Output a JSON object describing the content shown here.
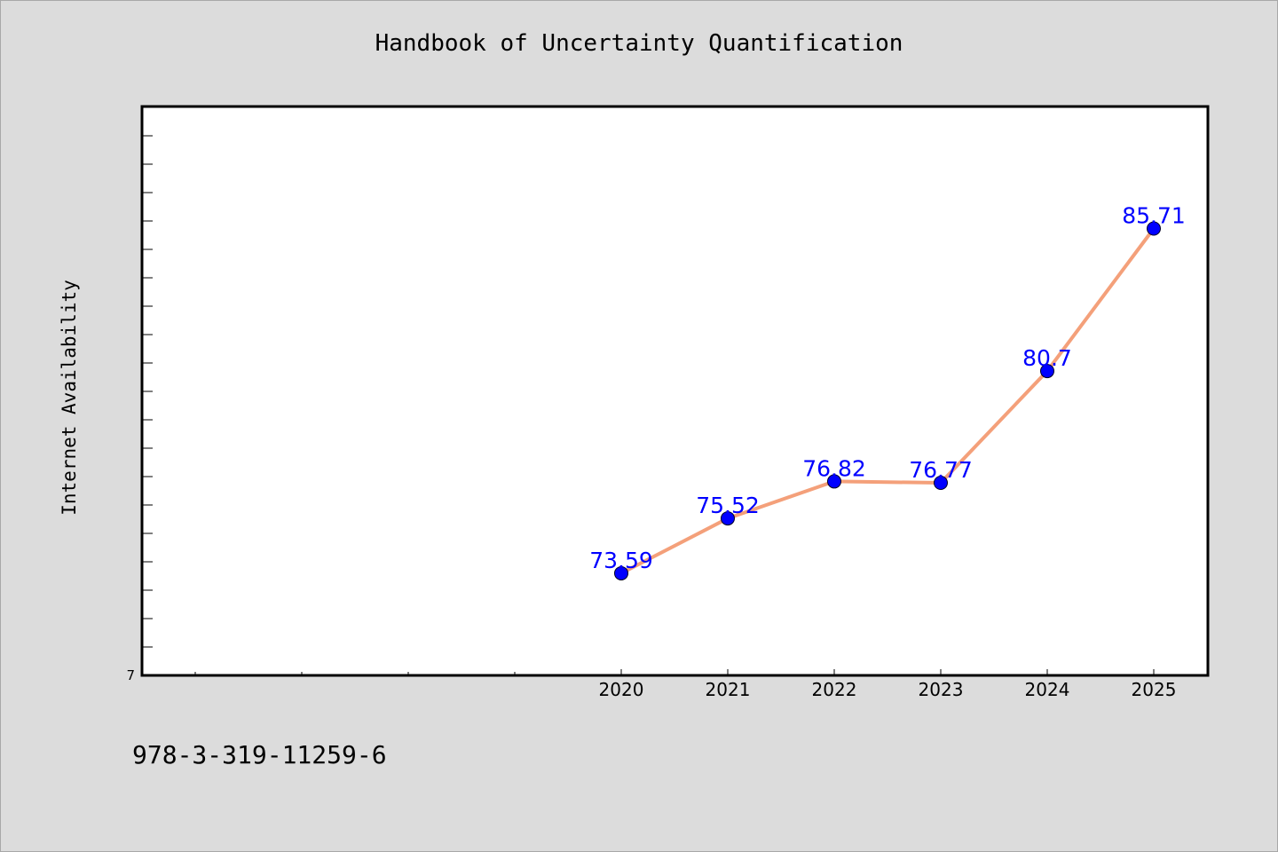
{
  "chart_data": {
    "type": "line",
    "title": "Handbook of Uncertainty Quantification",
    "xlabel": "",
    "ylabel": "Internet Availability",
    "categories": [
      "2020",
      "2021",
      "2022",
      "2023",
      "2024",
      "2025"
    ],
    "values": [
      73.59,
      75.52,
      76.82,
      76.77,
      80.7,
      85.71
    ],
    "data_labels": [
      "73.59",
      "75.52",
      "76.82",
      "76.77",
      "80.7",
      "85.71"
    ],
    "y_tick_labels": [
      "7"
    ],
    "ylim": [
      70,
      90
    ],
    "grid": false,
    "line_color": "#f4a07a",
    "marker_color": "#0000ff",
    "label_color": "#0000ff"
  },
  "footer": {
    "code": "978-3-319-11259-6"
  }
}
